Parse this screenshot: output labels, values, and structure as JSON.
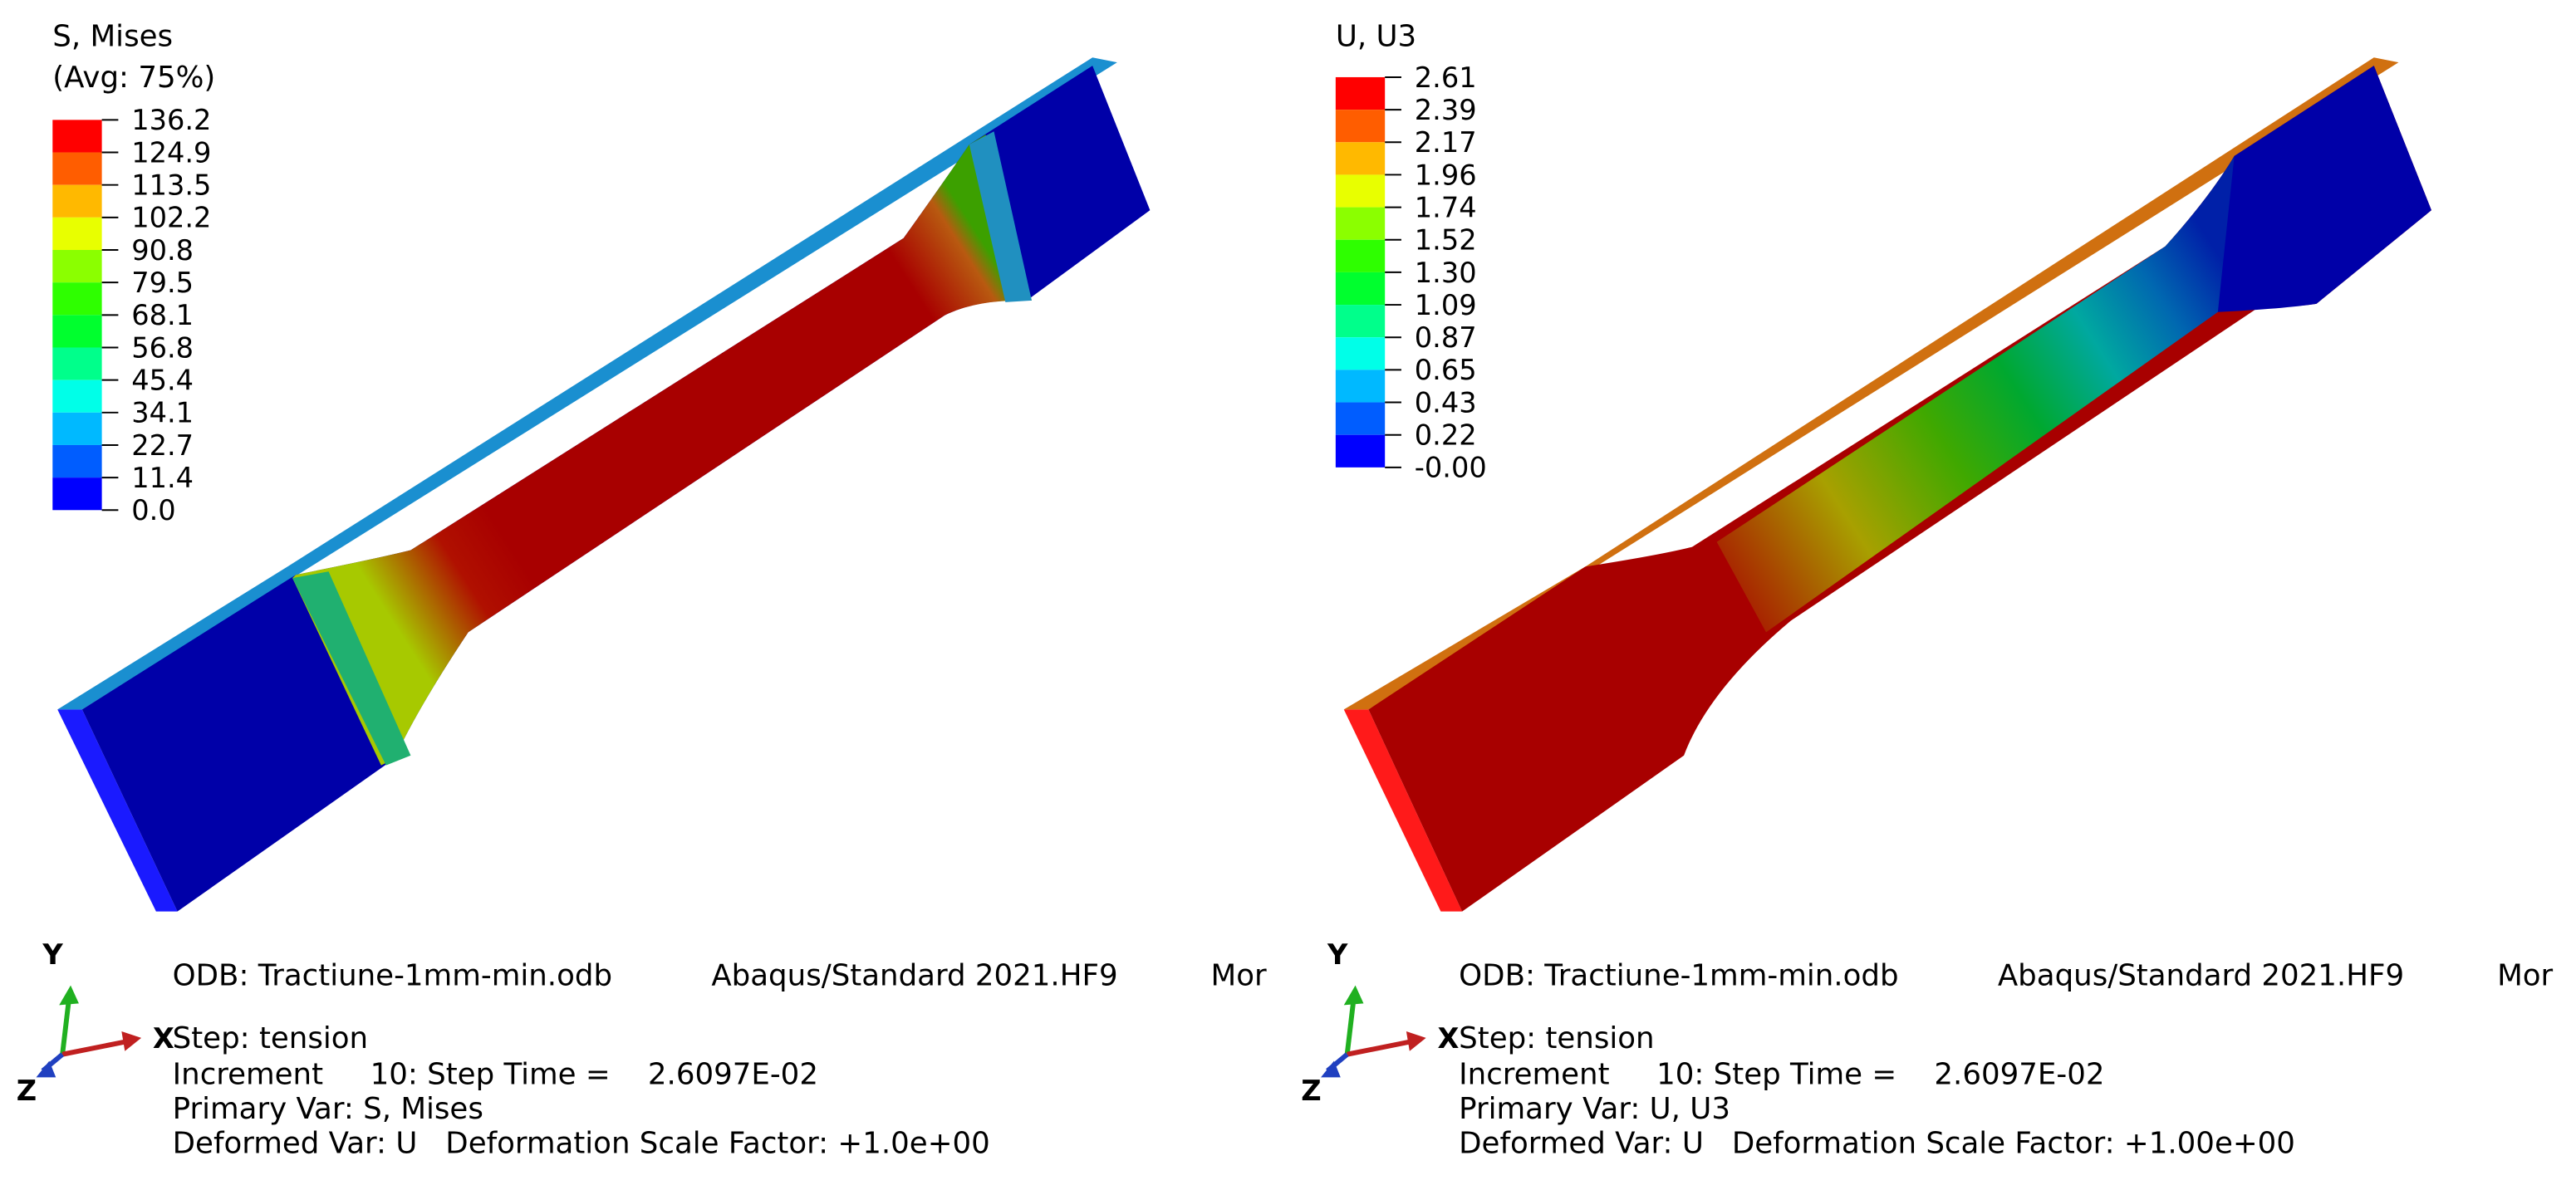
{
  "panels": [
    {
      "legend": {
        "title": [
          "S, Mises",
          "(Avg: 75%)"
        ],
        "labels": [
          "136.2",
          "124.9",
          "113.5",
          "102.2",
          "90.8",
          "79.5",
          "68.1",
          "56.8",
          "45.4",
          "34.1",
          "22.7",
          "11.4",
          "0.0"
        ]
      },
      "info": {
        "odb": "ODB: Tractiune-1mm-min.odb",
        "release": "Abaqus/Standard 2021.HF9",
        "date": "Mor",
        "step": "Step: tension",
        "increment": "Increment     10: Step Time =    2.6097E-02",
        "primary": "Primary Var: S, Mises",
        "deformed": "Deformed Var: U   Deformation Scale Factor: +1.0e+00"
      },
      "triad": {
        "x": "X",
        "y": "Y",
        "z": "Z"
      }
    },
    {
      "legend": {
        "title": [
          "U, U3"
        ],
        "labels": [
          "2.61",
          "2.39",
          "2.17",
          "1.96",
          "1.74",
          "1.52",
          "1.30",
          "1.09",
          "0.87",
          "0.65",
          "0.43",
          "0.22",
          "-0.00"
        ]
      },
      "info": {
        "odb": "ODB: Tractiune-1mm-min.odb",
        "release": "Abaqus/Standard 2021.HF9",
        "date": "Mor",
        "step": "Step: tension",
        "increment": "Increment     10: Step Time =    2.6097E-02",
        "primary": "Primary Var: U, U3",
        "deformed": "Deformed Var: U   Deformation Scale Factor: +1.00e+00"
      },
      "triad": {
        "x": "X",
        "y": "Y",
        "z": "Z"
      }
    }
  ]
}
